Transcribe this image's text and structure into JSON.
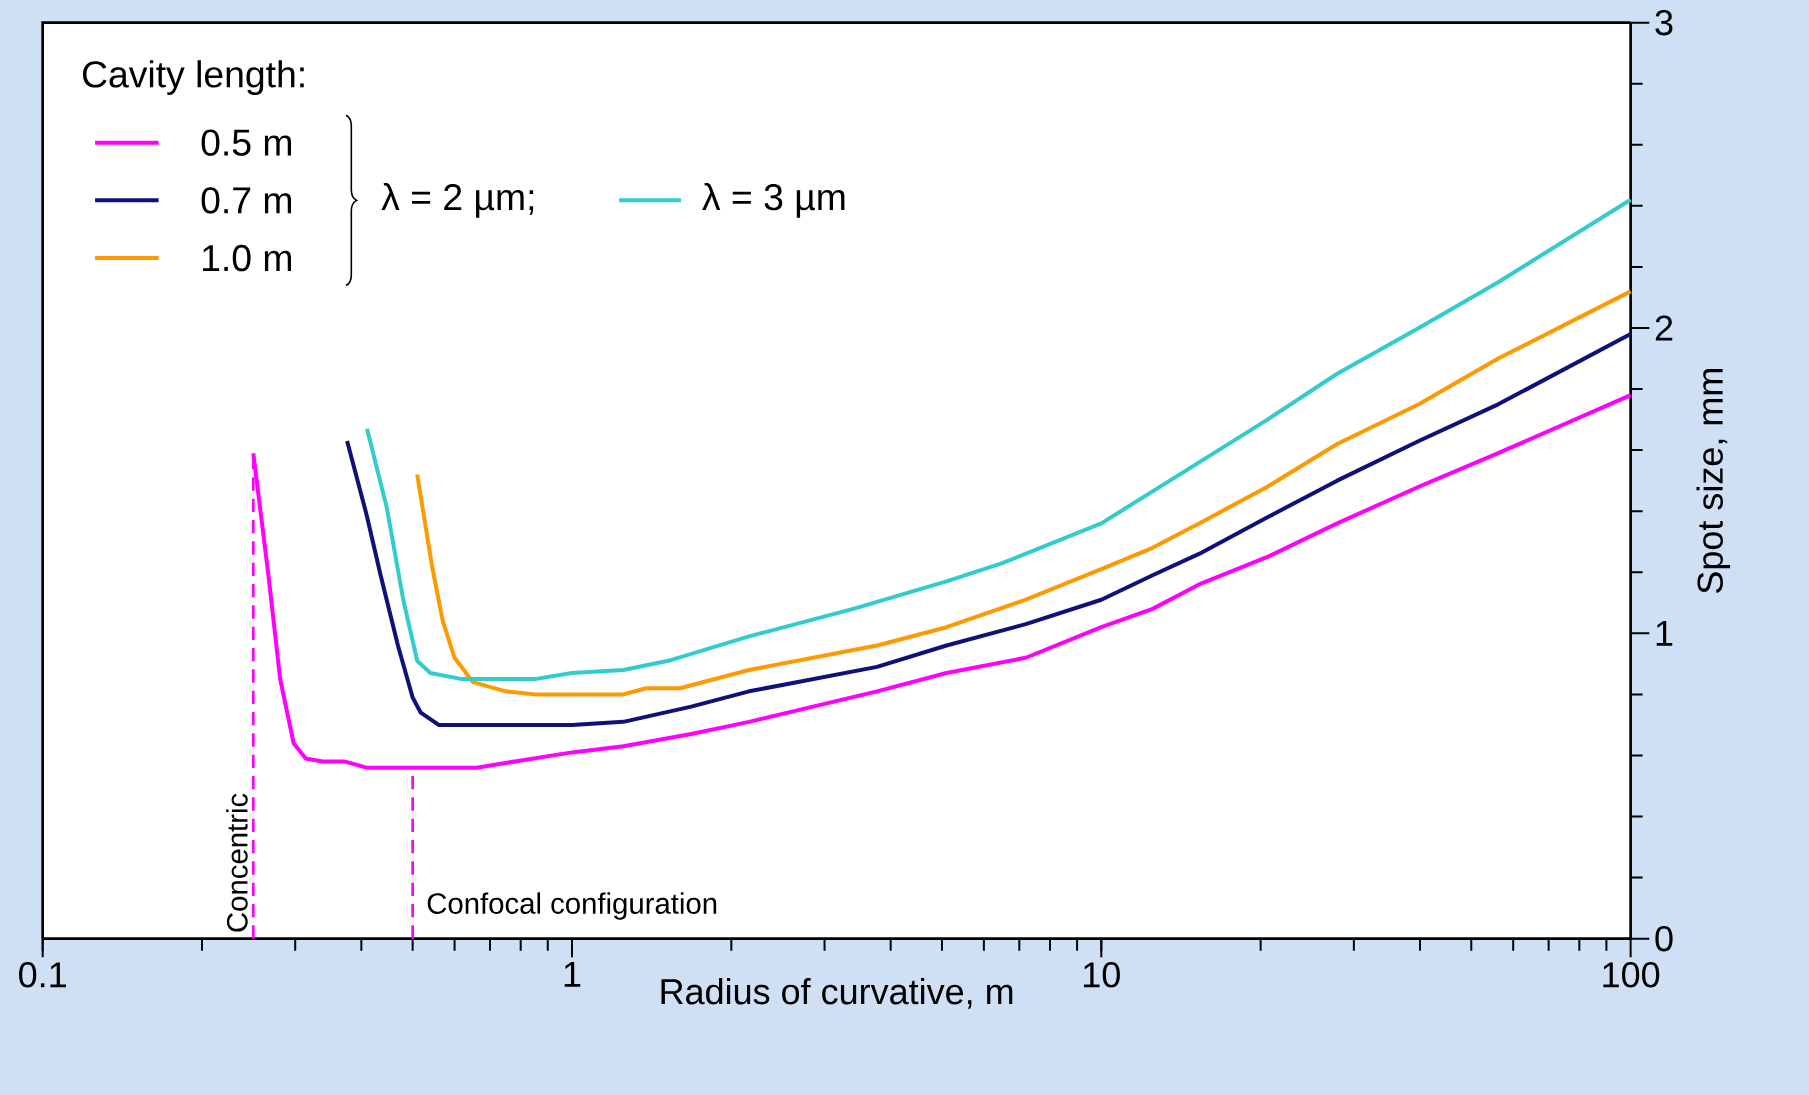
{
  "chart_data": {
    "type": "line",
    "xlabel": "Radius of curvative, m",
    "ylabel": "Spot size, mm",
    "legend_title": "Cavity length:",
    "log": "x",
    "xlim": [
      0.1,
      100
    ],
    "xticks": [
      0.1,
      1,
      10,
      100
    ],
    "ylim": [
      0,
      3
    ],
    "yticks": [
      0,
      1,
      2,
      3
    ],
    "grid": false,
    "legend": "top left",
    "marker": "none",
    "line_style": "solid",
    "series": [
      {
        "name": "0.5 m",
        "color": "#ff00ff",
        "x": [
          0.25,
          0.267,
          0.281,
          0.298,
          0.314,
          0.338,
          0.373,
          0.409,
          0.505,
          0.66,
          1.0,
          1.25,
          1.68,
          2.16,
          3.77,
          5.1,
          7.2,
          10,
          12.5,
          15.3,
          20.6,
          27.9,
          39.8,
          56.2,
          100
        ],
        "values": [
          1.59,
          1.19,
          0.85,
          0.64,
          0.59,
          0.58,
          0.58,
          0.56,
          0.56,
          0.56,
          0.61,
          0.63,
          0.67,
          0.71,
          0.81,
          0.87,
          0.92,
          1.02,
          1.08,
          1.16,
          1.25,
          1.36,
          1.48,
          1.59,
          1.78
        ]
      },
      {
        "name": "0.7 m",
        "color": "#10107a",
        "x": [
          0.376,
          0.409,
          0.435,
          0.469,
          0.5,
          0.518,
          0.56,
          0.68,
          1.0,
          1.25,
          1.68,
          2.16,
          3.77,
          5.1,
          7.2,
          10,
          12.5,
          15.3,
          20.6,
          27.9,
          39.8,
          56.2,
          100
        ],
        "values": [
          1.63,
          1.39,
          1.19,
          0.96,
          0.79,
          0.74,
          0.7,
          0.7,
          0.7,
          0.71,
          0.76,
          0.81,
          0.89,
          0.96,
          1.03,
          1.11,
          1.19,
          1.26,
          1.38,
          1.5,
          1.63,
          1.75,
          1.98
        ]
      },
      {
        "name": "1.0 m",
        "color": "#ff9900",
        "x": [
          0.51,
          0.544,
          0.57,
          0.6,
          0.65,
          0.75,
          0.85,
          1.25,
          1.38,
          1.6,
          2.16,
          3.77,
          5.1,
          7.2,
          10,
          12.5,
          15.3,
          20.6,
          27.9,
          39.8,
          56.2,
          100
        ],
        "values": [
          1.52,
          1.22,
          1.04,
          0.92,
          0.84,
          0.81,
          0.8,
          0.8,
          0.82,
          0.82,
          0.88,
          0.96,
          1.02,
          1.11,
          1.21,
          1.28,
          1.36,
          1.48,
          1.62,
          1.75,
          1.9,
          2.12
        ]
      },
      {
        "name": "λ = 3 µm",
        "color": "#33cccc",
        "x": [
          0.41,
          0.447,
          0.48,
          0.51,
          0.54,
          0.62,
          0.85,
          1.0,
          1.25,
          1.52,
          2.16,
          3.4,
          5.1,
          6.5,
          10,
          15.3,
          20.6,
          27.9,
          39.8,
          56.2,
          100
        ],
        "values": [
          1.67,
          1.41,
          1.11,
          0.91,
          0.87,
          0.85,
          0.85,
          0.87,
          0.88,
          0.91,
          0.99,
          1.08,
          1.17,
          1.23,
          1.36,
          1.56,
          1.7,
          1.85,
          2.0,
          2.15,
          2.42
        ]
      }
    ],
    "annotations": [
      "λ = 2 µm;"
    ],
    "ref_lines": [
      {
        "axis": "x",
        "value": 0.25,
        "label": "Concentric",
        "color": "#ff00ff",
        "line_style": "dashed"
      },
      {
        "axis": "x",
        "value": 0.5,
        "label": "Confocal configuration",
        "color": "#ff00ff",
        "line_style": "dashed"
      }
    ]
  }
}
